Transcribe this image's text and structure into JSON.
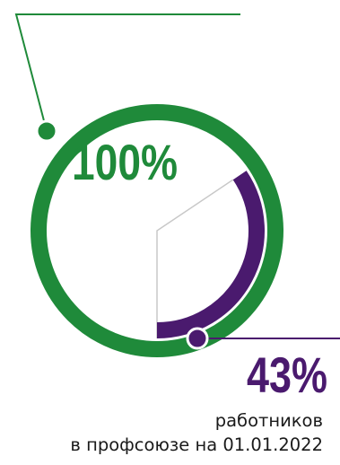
{
  "chart_data": {
    "type": "pie",
    "variant": "concentric-ring-progress",
    "series": [
      {
        "value": 100,
        "label": "100%",
        "color": "#1f8a3a"
      },
      {
        "value": 43,
        "label": "43%",
        "color": "#4a1a6e"
      }
    ],
    "leader_line_color": "#1f8a3a",
    "inner_leader_line_color": "#4a1a6e",
    "guide_line_color": "#c8c8c8"
  },
  "caption": {
    "line1": "работников",
    "line2": "в профсоюзе на 01.01.2022"
  }
}
